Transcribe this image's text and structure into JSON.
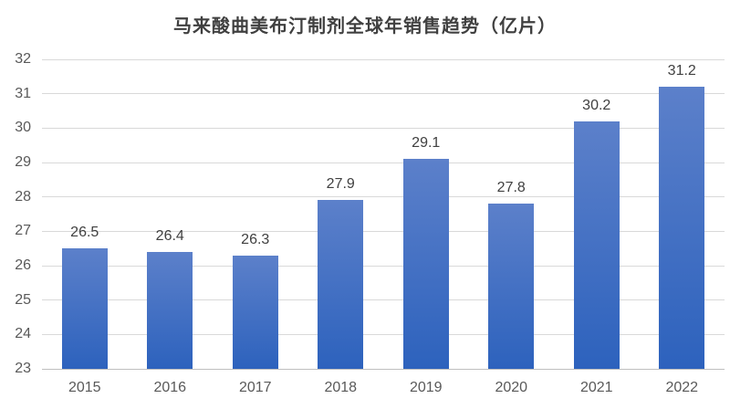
{
  "chart_data": {
    "type": "bar",
    "title": "马来酸曲美布汀制剂全球年销售趋势（亿片）",
    "categories": [
      "2015",
      "2016",
      "2017",
      "2018",
      "2019",
      "2020",
      "2021",
      "2022"
    ],
    "values": [
      26.5,
      26.4,
      26.3,
      27.9,
      29.1,
      27.8,
      30.2,
      31.2
    ],
    "xlabel": "",
    "ylabel": "",
    "ylim": [
      23,
      32
    ],
    "ytick_step": 1,
    "grid": true,
    "legend": false,
    "data_labels": true,
    "colors": {
      "bar_gradient_top": "#5C80CA",
      "bar_gradient_bottom": "#2D62BD",
      "gridline": "#D9D9D9",
      "axis_line": "#BFBFBF",
      "axis_label": "#595959",
      "title": "#404040",
      "value_label": "#404040",
      "background": "#FFFFFF"
    }
  }
}
